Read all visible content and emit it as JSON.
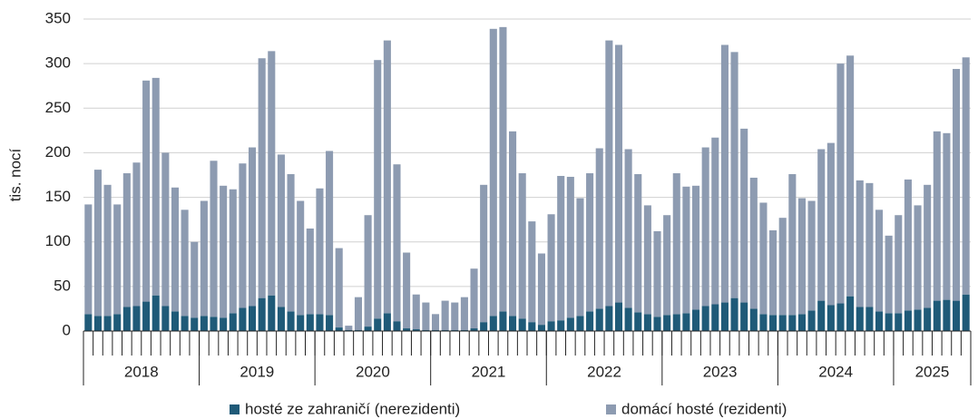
{
  "chart_data": {
    "type": "stacked_bar",
    "y_label": "tis. nocí",
    "categories": [
      null,
      null,
      null,
      null,
      null,
      null,
      null,
      null,
      null,
      null,
      null,
      null,
      null,
      null,
      null,
      null,
      null,
      null,
      null,
      null,
      null,
      null,
      null,
      null,
      null,
      null,
      null,
      null,
      null,
      null,
      null,
      null,
      null,
      null,
      null,
      null,
      null,
      null,
      null,
      null,
      null,
      null,
      null,
      null,
      null,
      null,
      null,
      null,
      null,
      null,
      null,
      null,
      null,
      null,
      null,
      null,
      null,
      null,
      null,
      null,
      null,
      null,
      null,
      null,
      null,
      null,
      null,
      null,
      null,
      null,
      null,
      null,
      null,
      null,
      null,
      null,
      null,
      null,
      null,
      null,
      null,
      null,
      null,
      null,
      null,
      null,
      null,
      null,
      null,
      null,
      null,
      null
    ],
    "groups": [
      {
        "label": "2018",
        "count": 12
      },
      {
        "label": "2019",
        "count": 12
      },
      {
        "label": "2020",
        "count": 12
      },
      {
        "label": "2021",
        "count": 12
      },
      {
        "label": "2022",
        "count": 12
      },
      {
        "label": "2023",
        "count": 12
      },
      {
        "label": "2024",
        "count": 12
      },
      {
        "label": "2025",
        "count": 8
      }
    ],
    "series": [
      {
        "name": "hosté ze zahraničí (nerezidenti)",
        "color": "#1f5a78",
        "values": [
          19,
          17,
          17,
          19,
          27,
          28,
          33,
          40,
          28,
          22,
          17,
          15,
          17,
          16,
          15,
          20,
          26,
          28,
          37,
          40,
          27,
          22,
          18,
          19,
          19,
          18,
          4,
          1,
          1,
          5,
          14,
          20,
          11,
          3,
          2,
          1,
          1,
          1,
          1,
          1,
          3,
          10,
          17,
          22,
          17,
          14,
          10,
          7,
          11,
          12,
          15,
          17,
          22,
          25,
          28,
          32,
          26,
          21,
          19,
          16,
          18,
          19,
          20,
          24,
          28,
          30,
          32,
          37,
          32,
          25,
          19,
          18,
          18,
          18,
          19,
          23,
          34,
          29,
          31,
          39,
          27,
          27,
          22,
          20,
          20,
          23,
          24,
          26,
          34,
          35,
          34,
          41
        ]
      },
      {
        "name": "domácí hosté (rezidenti)",
        "color": "#8d9bb1",
        "values": [
          123,
          164,
          147,
          123,
          150,
          161,
          248,
          244,
          172,
          139,
          119,
          85,
          129,
          175,
          148,
          139,
          162,
          178,
          269,
          274,
          171,
          154,
          128,
          96,
          141,
          184,
          89,
          5,
          37,
          125,
          290,
          306,
          176,
          85,
          39,
          31,
          18,
          33,
          31,
          37,
          67,
          154,
          322,
          319,
          207,
          163,
          113,
          80,
          120,
          162,
          158,
          132,
          155,
          180,
          298,
          289,
          178,
          155,
          122,
          96,
          112,
          158,
          142,
          139,
          178,
          187,
          289,
          276,
          195,
          147,
          125,
          95,
          109,
          158,
          130,
          123,
          170,
          182,
          269,
          270,
          142,
          139,
          114,
          87,
          110,
          147,
          117,
          138,
          190,
          187,
          260,
          266
        ]
      }
    ],
    "ylim": [
      0,
      350
    ],
    "yticks": [
      0,
      50,
      100,
      150,
      200,
      250,
      300,
      350
    ],
    "grid": true,
    "legend": "bottom"
  }
}
